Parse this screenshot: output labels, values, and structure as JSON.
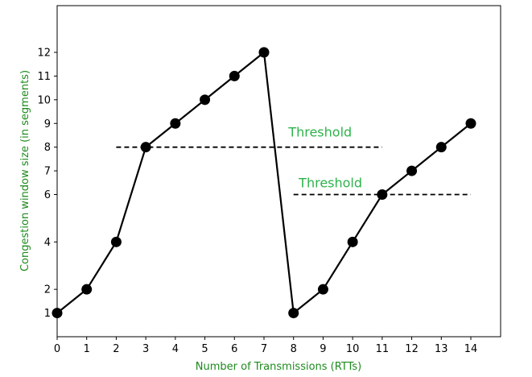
{
  "chart_data": {
    "type": "line",
    "title": "",
    "xlabel": "Number of Transmissions (RTTs)",
    "ylabel": "Congestion window size (in segments)",
    "xlim": [
      0,
      15
    ],
    "ylim": [
      0,
      13.5
    ],
    "x_ticks": [
      0,
      1,
      2,
      3,
      4,
      5,
      6,
      7,
      8,
      9,
      10,
      11,
      12,
      13,
      14
    ],
    "y_ticks": [
      1,
      2,
      4,
      6,
      7,
      8,
      9,
      10,
      11,
      12
    ],
    "x_tick_labels": [
      "0",
      "1",
      "2",
      "3",
      "4",
      "5",
      "6",
      "7",
      "8",
      "9",
      "10",
      "11",
      "12",
      "13",
      "14"
    ],
    "y_tick_labels": [
      "1",
      "2",
      "4",
      "6",
      "7",
      "8",
      "9",
      "10",
      "11",
      "12"
    ],
    "grid": false,
    "series": [
      {
        "color": "#000000",
        "marker": "circle",
        "points": [
          [
            0,
            1
          ],
          [
            1,
            2
          ],
          [
            2,
            4
          ],
          [
            3,
            8
          ],
          [
            4,
            9
          ],
          [
            5,
            10
          ],
          [
            6,
            11
          ],
          [
            7,
            12
          ],
          [
            8,
            1
          ],
          [
            9,
            2
          ],
          [
            10,
            4
          ],
          [
            11,
            6
          ],
          [
            12,
            7
          ],
          [
            13,
            8
          ],
          [
            14,
            9
          ]
        ]
      }
    ],
    "threshold_lines": [
      {
        "x_start": 2,
        "x_end": 11,
        "y": 8,
        "style": "dashed",
        "color": "#000000"
      },
      {
        "x_start": 8,
        "x_end": 14,
        "y": 6,
        "style": "dashed",
        "color": "#000000"
      }
    ],
    "annotations": [
      {
        "text": "Threshold",
        "x": 8.9,
        "y": 8.45,
        "color": "#2db34a"
      },
      {
        "text": "Threshold",
        "x": 9.25,
        "y": 6.3,
        "color": "#2db34a"
      }
    ],
    "label_color": "#1e8a1e"
  }
}
